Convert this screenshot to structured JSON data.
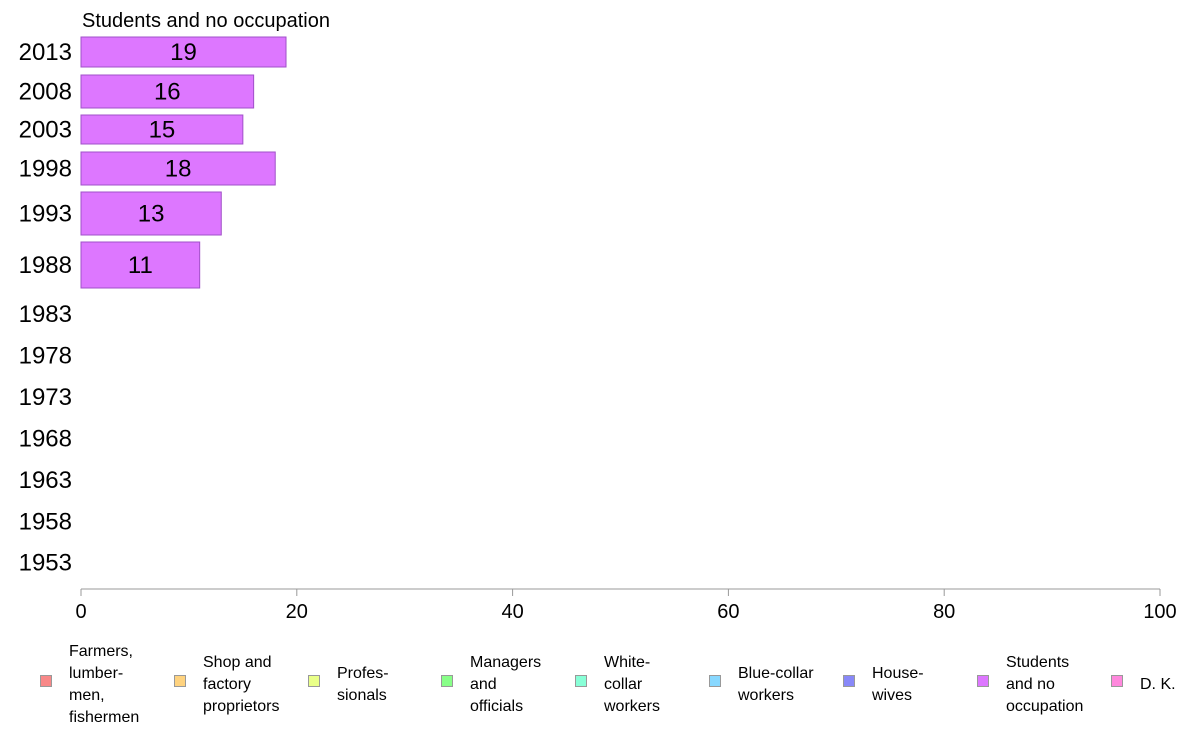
{
  "chart_data": {
    "type": "bar",
    "orientation": "horizontal",
    "title": "Students and no occupation",
    "categories": [
      "2013",
      "2008",
      "2003",
      "1998",
      "1993",
      "1988",
      "1983",
      "1978",
      "1973",
      "1968",
      "1963",
      "1958",
      "1953"
    ],
    "values": [
      19,
      16,
      15,
      18,
      13,
      11,
      null,
      null,
      null,
      null,
      null,
      null,
      null
    ],
    "series_color": "#dd77ff",
    "xlim": [
      0,
      100
    ],
    "xticks": [
      0,
      20,
      40,
      60,
      80,
      100
    ],
    "xlabel": "",
    "ylabel": "",
    "grid": false,
    "legend_position": "bottom",
    "legend": [
      {
        "label": "Farmers,\nlumber-\nmen,\nfishermen",
        "color": "#f88888"
      },
      {
        "label": "Shop and\nfactory\nproprietors",
        "color": "#ffd37f"
      },
      {
        "label": "Profes-\nsionals",
        "color": "#e9ff88"
      },
      {
        "label": "Managers\nand\nofficials",
        "color": "#88ff88"
      },
      {
        "label": "White-\ncollar\nworkers",
        "color": "#88ffd7"
      },
      {
        "label": "Blue-collar\nworkers",
        "color": "#88d8ff"
      },
      {
        "label": "House-\nwives",
        "color": "#8888f8"
      },
      {
        "label": "Students\nand no\noccupation",
        "color": "#dd77ff"
      },
      {
        "label": "D. K.",
        "color": "#ff88dd"
      }
    ]
  }
}
